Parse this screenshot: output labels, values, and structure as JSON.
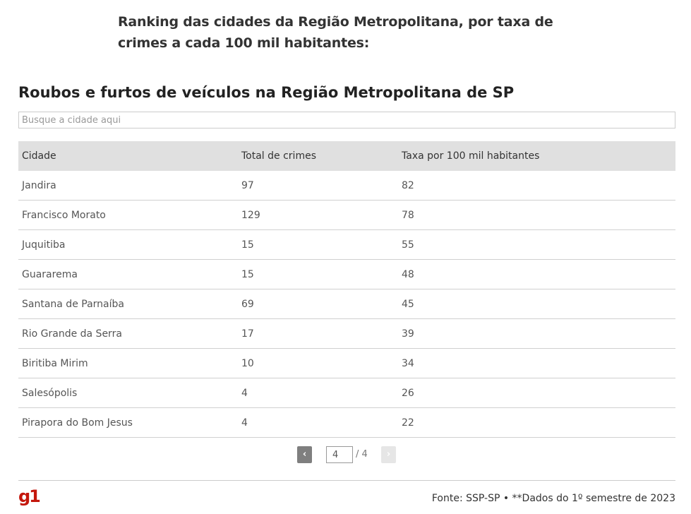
{
  "intro": "Ranking das cidades da Região Metropolitana, por taxa de crimes a cada 100 mil habitantes:",
  "widget": {
    "title": "Roubos e furtos de veículos na Região Metropolitana de SP",
    "search_placeholder": "Busque a cidade aqui",
    "columns": [
      "Cidade",
      "Total de crimes",
      "Taxa por 100 mil habitantes"
    ],
    "rows": [
      [
        "Jandira",
        "97",
        "82"
      ],
      [
        "Francisco Morato",
        "129",
        "78"
      ],
      [
        "Juquitiba",
        "15",
        "55"
      ],
      [
        "Guararema",
        "15",
        "48"
      ],
      [
        "Santana de Parnaíba",
        "69",
        "45"
      ],
      [
        "Rio Grande da Serra",
        "17",
        "39"
      ],
      [
        "Biritiba Mirim",
        "10",
        "34"
      ],
      [
        "Salesópolis",
        "4",
        "26"
      ],
      [
        "Pirapora do Bom Jesus",
        "4",
        "22"
      ]
    ],
    "pagination": {
      "prev_label": "‹",
      "next_label": "›",
      "current_page": "4",
      "total_label": "/ 4"
    }
  },
  "footer": {
    "logo": "g1",
    "source": "Fonte: SSP-SP • **Dados do 1º semestre de 2023"
  },
  "colors": {
    "brand": "#c4170c",
    "header_bg": "#e0e0e0"
  }
}
